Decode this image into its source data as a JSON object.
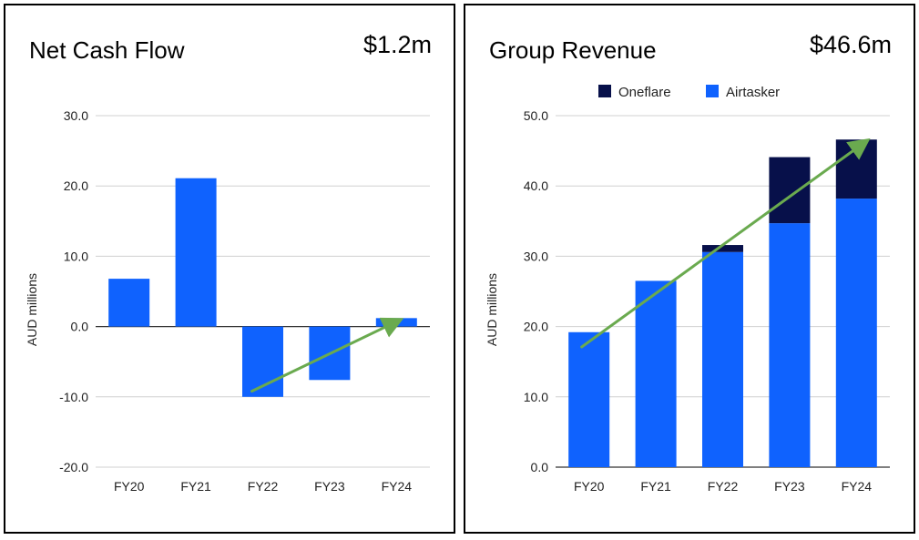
{
  "chart_data": [
    {
      "type": "bar",
      "title": "Net Cash Flow",
      "headline_value": "$1.2m",
      "ylabel": "AUD millions",
      "ylim": [
        -20,
        30
      ],
      "yticks": [
        30,
        20,
        10,
        0,
        -10,
        -20
      ],
      "ytick_labels": [
        "30.0",
        "20.0",
        "10.0",
        "0.0",
        "-10.0",
        "-20.0"
      ],
      "categories": [
        "FY20",
        "FY21",
        "FY22",
        "FY23",
        "FY24"
      ],
      "series": [
        {
          "values": [
            6.8,
            21.1,
            -10.0,
            -7.6,
            1.2
          ]
        }
      ],
      "trend_arrow": {
        "from": [
          "FY22",
          -9.2
        ],
        "to": [
          "FY24",
          0.7
        ]
      },
      "grid": true,
      "colors": {
        "bar": "#0f62fe",
        "arrow": "#6aaa4f"
      }
    },
    {
      "type": "bar",
      "stacked": true,
      "title": "Group Revenue",
      "headline_value": "$46.6m",
      "ylabel": "AUD millions",
      "ylim": [
        0,
        50
      ],
      "yticks": [
        50,
        40,
        30,
        20,
        10,
        0
      ],
      "ytick_labels": [
        "50.0",
        "40.0",
        "30.0",
        "20.0",
        "10.0",
        "0.0"
      ],
      "categories": [
        "FY20",
        "FY21",
        "FY22",
        "FY23",
        "FY24"
      ],
      "series": [
        {
          "name": "Airtasker",
          "values": [
            19.2,
            26.5,
            30.6,
            34.7,
            38.2
          ],
          "color": "#0f62fe"
        },
        {
          "name": "Oneflare",
          "values": [
            0,
            0,
            1.0,
            9.4,
            8.4
          ],
          "color": "#07104a"
        }
      ],
      "legend": [
        "Oneflare",
        "Airtasker"
      ],
      "legend_position": "top",
      "trend_arrow": {
        "from": [
          "FY20",
          17.1
        ],
        "to": [
          "FY24",
          46.1
        ]
      },
      "grid": true,
      "colors": {
        "arrow": "#6aaa4f"
      }
    }
  ]
}
